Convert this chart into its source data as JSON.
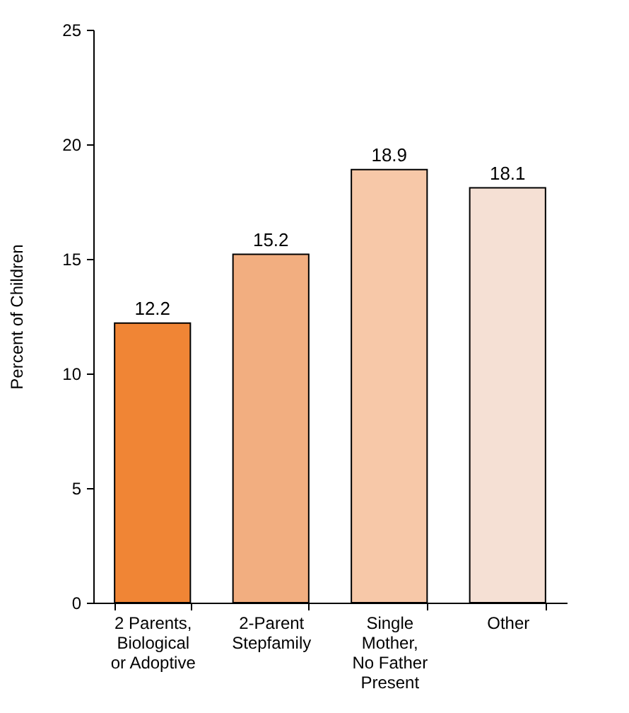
{
  "chart_data": {
    "type": "bar",
    "ylabel": "Percent of Children",
    "categories": [
      "2 Parents, Biological or Adoptive",
      "2-Parent Stepfamily",
      "Single Mother, No Father Present",
      "Other"
    ],
    "values": [
      12.2,
      15.2,
      18.9,
      18.1
    ],
    "colors": [
      "#f08535",
      "#f2ae80",
      "#f7c8a8",
      "#f5e0d4"
    ],
    "ylim": [
      0,
      25
    ],
    "yticks": [
      0,
      5,
      10,
      15,
      20,
      25
    ],
    "grid": false,
    "data_labels": true
  }
}
